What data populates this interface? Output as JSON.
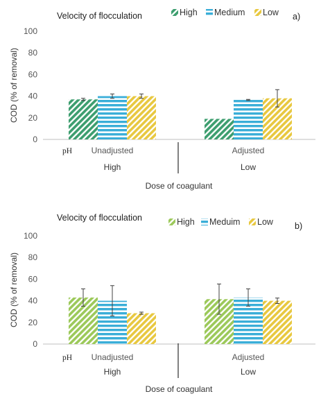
{
  "colors": {
    "high_a": "#3d9e6f",
    "medium": "#3aaed8",
    "low": "#e8c840",
    "high_b": "#9cc95a",
    "axis": "#bfbfbf",
    "error_bar": "#404040"
  },
  "chart_data": [
    {
      "type": "bar",
      "panel_label": "a)",
      "title": "Velocity of flocculation",
      "legend_position": "top-right",
      "ylabel": "COD (% of removal)",
      "ylim": [
        0,
        100
      ],
      "yticks": [
        0,
        20,
        40,
        60,
        80,
        100
      ],
      "grid": false,
      "categories": [
        "Unadjusted",
        "Adjusted"
      ],
      "category_prefix": "pH",
      "groups": [
        "High",
        "Low"
      ],
      "xlabel": "Dose of coagulant",
      "series": [
        {
          "name": "High",
          "values": [
            37,
            19
          ],
          "errors": [
            1,
            0
          ],
          "color": "#3d9e6f"
        },
        {
          "name": "Medium",
          "values": [
            40,
            36.5
          ],
          "errors": [
            2,
            0.5
          ],
          "color": "#3aaed8"
        },
        {
          "name": "Low",
          "values": [
            40,
            38
          ],
          "errors": [
            2,
            8
          ],
          "color": "#e8c840"
        }
      ]
    },
    {
      "type": "bar",
      "panel_label": "b)",
      "title": "Velocity of flocculation",
      "legend_position": "top-right",
      "ylabel": "COD (% of removal)",
      "ylim": [
        0,
        100
      ],
      "yticks": [
        0,
        20,
        40,
        60,
        80,
        100
      ],
      "grid": false,
      "categories": [
        "Unadjusted",
        "Adjusted"
      ],
      "category_prefix": "pH",
      "groups": [
        "High",
        "Low"
      ],
      "xlabel": "Dose of coagulant",
      "series": [
        {
          "name": "High",
          "values": [
            43,
            41.5
          ],
          "errors": [
            8,
            14
          ],
          "color": "#9cc95a"
        },
        {
          "name": "Meduim",
          "values": [
            40,
            43
          ],
          "errors": [
            14,
            8
          ],
          "color": "#3aaed8"
        },
        {
          "name": "Low",
          "values": [
            28.5,
            40
          ],
          "errors": [
            1,
            2.5
          ],
          "color": "#e8c840"
        }
      ]
    }
  ]
}
